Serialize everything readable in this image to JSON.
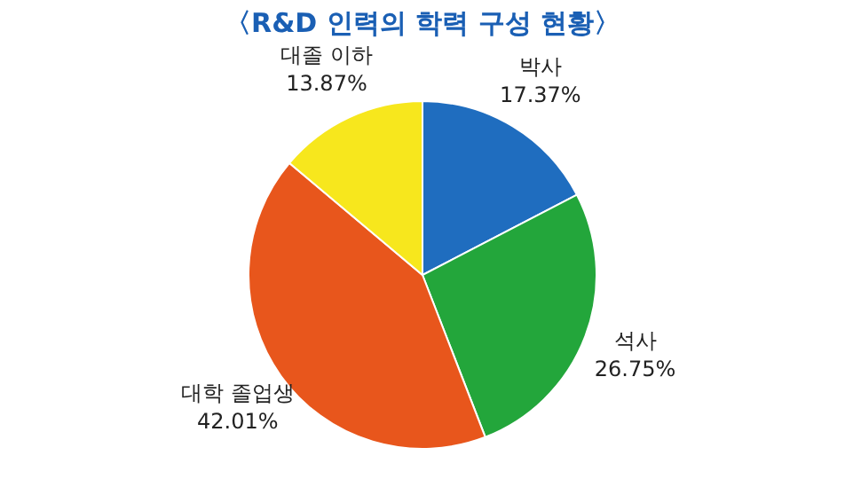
{
  "chart_data": {
    "type": "pie",
    "title": "〈R&D 인력의 학력 구성 현황〉",
    "categories": [
      "박사",
      "석사",
      "대학 졸업생",
      "대졸 이하"
    ],
    "values": [
      17.37,
      26.75,
      42.01,
      13.87
    ],
    "value_labels": [
      "17.37%",
      "26.75%",
      "42.01%",
      "13.87%"
    ],
    "colors": [
      "#1f6dbf",
      "#23a63b",
      "#e8561c",
      "#f7e71d"
    ],
    "legend": false
  }
}
